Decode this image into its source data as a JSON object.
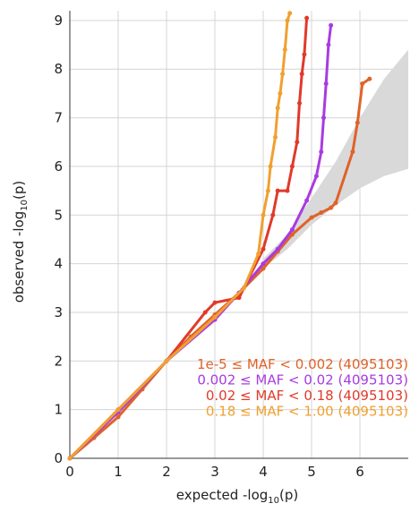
{
  "chart_data": {
    "type": "qq",
    "xlabel": {
      "text": "expected -log",
      "sub": "10",
      "after": "(p)"
    },
    "ylabel": {
      "text": "observed -log",
      "sub": "10",
      "after": "(p)"
    },
    "xlim": [
      0,
      7
    ],
    "ylim": [
      0,
      9.2
    ],
    "xticks": [
      0,
      1,
      2,
      3,
      4,
      5,
      6
    ],
    "yticks": [
      0,
      1,
      2,
      3,
      4,
      5,
      6,
      7,
      8,
      9
    ],
    "grid": true,
    "legend": "lower-right",
    "band": {
      "color": "#d9d9d9",
      "x": [
        4,
        4.5,
        5,
        5.5,
        6,
        6.5,
        7
      ],
      "lower": [
        3.9,
        4.3,
        4.8,
        5.2,
        5.55,
        5.8,
        5.95
      ],
      "upper": [
        4.1,
        4.6,
        5.35,
        6.1,
        7.0,
        7.8,
        8.4
      ]
    },
    "series": [
      {
        "name": "1e-5 ≤ MAF < 0.002 (4095103)",
        "color": "#e0622a",
        "x": [
          0,
          0.5,
          1,
          1.5,
          2,
          2.5,
          3,
          3.5,
          4,
          4.3,
          4.6,
          5,
          5.2,
          5.4,
          5.5,
          5.85,
          5.95,
          6.05,
          6.2
        ],
        "values": [
          0,
          0.42,
          0.85,
          1.42,
          2.0,
          2.5,
          2.95,
          3.4,
          3.9,
          4.25,
          4.6,
          4.95,
          5.05,
          5.15,
          5.25,
          6.3,
          6.9,
          7.7,
          7.8
        ]
      },
      {
        "name": "0.002 ≤ MAF < 0.02 (4095103)",
        "color": "#a93be0",
        "x": [
          0,
          1,
          2,
          3,
          3.5,
          4,
          4.3,
          4.6,
          4.9,
          5.1,
          5.2,
          5.25,
          5.3,
          5.35,
          5.4
        ],
        "values": [
          0,
          0.95,
          2.0,
          2.85,
          3.4,
          4.0,
          4.3,
          4.7,
          5.3,
          5.8,
          6.3,
          7.0,
          7.7,
          8.5,
          8.9
        ]
      },
      {
        "name": "0.02 ≤ MAF < 0.18 (4095103)",
        "color": "#e03a2a",
        "x": [
          0,
          1,
          2,
          2.8,
          3,
          3.5,
          4,
          4.2,
          4.3,
          4.5,
          4.6,
          4.7,
          4.75,
          4.8,
          4.85,
          4.9
        ],
        "values": [
          0,
          1.0,
          2.0,
          3.0,
          3.2,
          3.3,
          4.3,
          5.0,
          5.5,
          5.5,
          6.0,
          6.5,
          7.3,
          7.9,
          8.3,
          9.05
        ]
      },
      {
        "name": "0.18 ≤ MAF < 1.00 (4095103)",
        "color": "#f0a030",
        "x": [
          0,
          1,
          2,
          3,
          3.6,
          3.9,
          4.0,
          4.1,
          4.15,
          4.25,
          4.3,
          4.35,
          4.4,
          4.45,
          4.5,
          4.55
        ],
        "values": [
          0,
          1.0,
          2.0,
          2.9,
          3.5,
          4.2,
          5.0,
          5.5,
          6.0,
          6.6,
          7.2,
          7.5,
          7.9,
          8.4,
          9.0,
          9.15
        ]
      }
    ]
  }
}
